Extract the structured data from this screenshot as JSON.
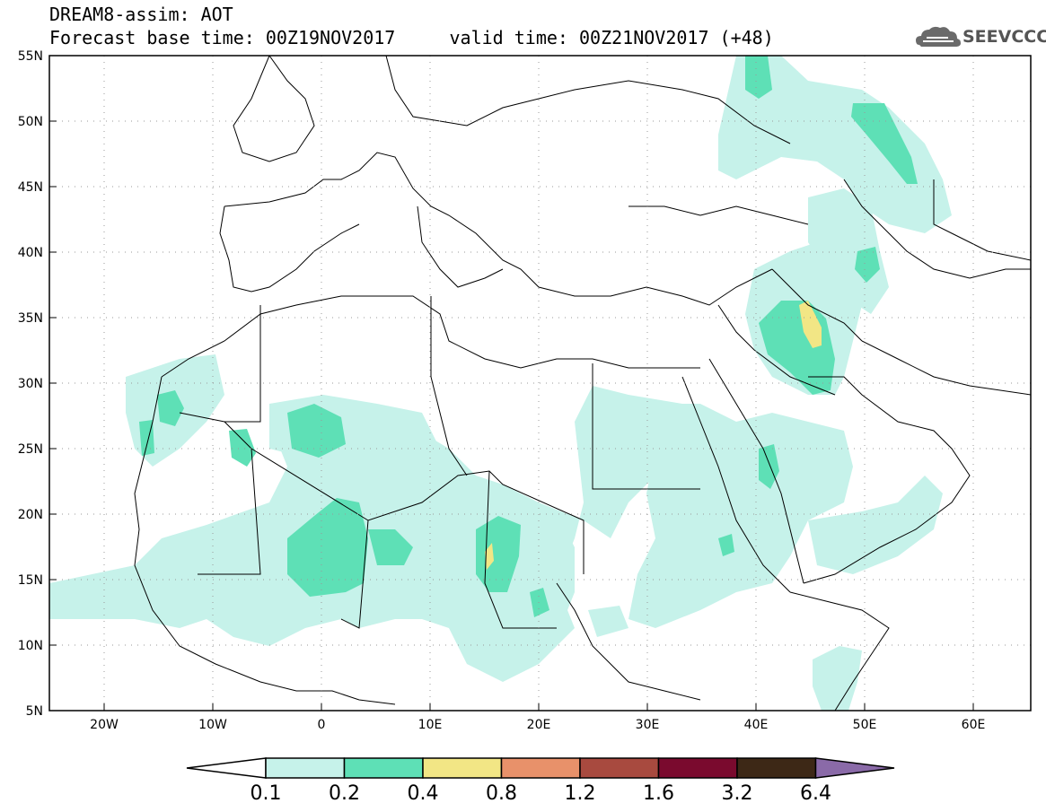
{
  "title": {
    "line1": "DREAM8-assim: AOT",
    "line2": "Forecast base time: 00Z19NOV2017     valid time: 00Z21NOV2017 (+48)"
  },
  "logo": {
    "text": "SEEVCCC",
    "icon": "cloud-icon"
  },
  "map": {
    "lon_range": [
      -25,
      65
    ],
    "lat_range": [
      5,
      55
    ],
    "lon_ticks": [
      "20W",
      "10W",
      "0",
      "10E",
      "20E",
      "30E",
      "40E",
      "50E",
      "60E"
    ],
    "lat_ticks": [
      "55N",
      "50N",
      "45N",
      "40N",
      "35N",
      "30N",
      "25N",
      "20N",
      "15N",
      "10N",
      "5N"
    ]
  },
  "colorbar": {
    "labels": [
      "0.1",
      "0.2",
      "0.4",
      "0.8",
      "1.2",
      "1.6",
      "3.2",
      "6.4"
    ],
    "colors": [
      "#ffffff",
      "#c6f2ea",
      "#5ee0b6",
      "#f2e685",
      "#e8916a",
      "#a84a3f",
      "#7a0a2e",
      "#3d2816",
      "#8a6aa8"
    ]
  }
}
